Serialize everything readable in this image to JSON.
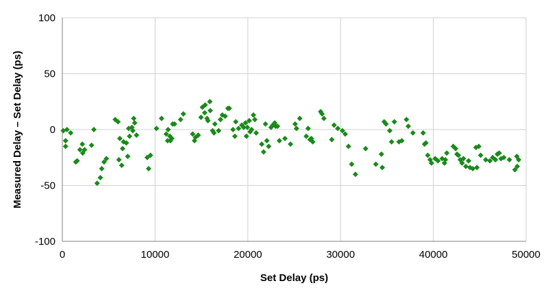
{
  "chart_data": {
    "type": "scatter",
    "title": "",
    "xlabel": "Set Delay (ps)",
    "ylabel": "Measured Delay – Set Delay (ps)",
    "xlim": [
      0,
      50000
    ],
    "ylim": [
      -100,
      100
    ],
    "x_ticks": [
      "0",
      "10000",
      "20000",
      "30000",
      "40000",
      "50000"
    ],
    "y_ticks": [
      "100",
      "50",
      "0",
      "-50",
      "-100"
    ],
    "grid": true,
    "legend": "none",
    "marker": "diamond",
    "colors": {
      "marker": "#1a8a1a",
      "grid": "#d0d0d0",
      "axis": "#808080"
    },
    "series": [
      {
        "points": [
          [
            100,
            -1
          ],
          [
            350,
            -10
          ],
          [
            350,
            -15
          ],
          [
            500,
            0
          ],
          [
            900,
            -3
          ],
          [
            1450,
            -29
          ],
          [
            1600,
            -28
          ],
          [
            1900,
            -18
          ],
          [
            2150,
            -13
          ],
          [
            2200,
            -21
          ],
          [
            2400,
            -18
          ],
          [
            3150,
            -14
          ],
          [
            3400,
            0
          ],
          [
            3750,
            -48
          ],
          [
            4100,
            -43
          ],
          [
            4250,
            -35
          ],
          [
            4500,
            -29
          ],
          [
            4750,
            -26
          ],
          [
            5700,
            9
          ],
          [
            6000,
            7
          ],
          [
            6100,
            -27
          ],
          [
            6200,
            -8
          ],
          [
            6400,
            -32
          ],
          [
            6500,
            -17
          ],
          [
            6600,
            -11
          ],
          [
            6900,
            -12
          ],
          [
            7050,
            -24
          ],
          [
            7150,
            1
          ],
          [
            7250,
            -6
          ],
          [
            7500,
            2
          ],
          [
            7600,
            -1
          ],
          [
            7700,
            10
          ],
          [
            7800,
            6
          ],
          [
            8000,
            -5
          ],
          [
            9150,
            -25
          ],
          [
            9300,
            -35
          ],
          [
            9500,
            -23
          ],
          [
            10150,
            1
          ],
          [
            10700,
            10
          ],
          [
            11200,
            -4
          ],
          [
            11350,
            -10
          ],
          [
            11400,
            0
          ],
          [
            11600,
            -6
          ],
          [
            11650,
            -10
          ],
          [
            11800,
            -8
          ],
          [
            11900,
            5
          ],
          [
            12100,
            5
          ],
          [
            12750,
            9
          ],
          [
            13050,
            14
          ],
          [
            14050,
            -4
          ],
          [
            14250,
            -10
          ],
          [
            14350,
            -7
          ],
          [
            14650,
            -5
          ],
          [
            14950,
            11
          ],
          [
            15100,
            20
          ],
          [
            15350,
            15
          ],
          [
            15400,
            22
          ],
          [
            15600,
            10
          ],
          [
            15700,
            8
          ],
          [
            15900,
            25
          ],
          [
            15950,
            17
          ],
          [
            16200,
            -1
          ],
          [
            16350,
            -3
          ],
          [
            16450,
            5
          ],
          [
            16850,
            -1
          ],
          [
            17050,
            9
          ],
          [
            17250,
            13
          ],
          [
            17550,
            12
          ],
          [
            17850,
            19
          ],
          [
            18000,
            19
          ],
          [
            18400,
            0
          ],
          [
            18600,
            -6
          ],
          [
            18700,
            7
          ],
          [
            19000,
            1
          ],
          [
            19350,
            4
          ],
          [
            19550,
            2
          ],
          [
            19750,
            6
          ],
          [
            19850,
            -6
          ],
          [
            19950,
            2
          ],
          [
            20150,
            8
          ],
          [
            20250,
            -2
          ],
          [
            20400,
            0
          ],
          [
            20600,
            13
          ],
          [
            20750,
            9
          ],
          [
            20900,
            -3
          ],
          [
            21500,
            -13
          ],
          [
            21700,
            -20
          ],
          [
            21900,
            5
          ],
          [
            22050,
            -10
          ],
          [
            22250,
            -15
          ],
          [
            22500,
            2
          ],
          [
            22700,
            4
          ],
          [
            22900,
            6
          ],
          [
            23000,
            3
          ],
          [
            23200,
            3
          ],
          [
            23400,
            -10
          ],
          [
            24000,
            -8
          ],
          [
            24600,
            -13
          ],
          [
            25100,
            5
          ],
          [
            25250,
            1
          ],
          [
            25600,
            10
          ],
          [
            26300,
            -6
          ],
          [
            26500,
            1
          ],
          [
            26700,
            -9
          ],
          [
            26850,
            -8
          ],
          [
            27000,
            -11
          ],
          [
            27850,
            16
          ],
          [
            28000,
            14
          ],
          [
            28200,
            10
          ],
          [
            29050,
            -9
          ],
          [
            29300,
            4
          ],
          [
            29700,
            1
          ],
          [
            30200,
            -1
          ],
          [
            30500,
            -4
          ],
          [
            30850,
            -15
          ],
          [
            31200,
            -31
          ],
          [
            31600,
            -40
          ],
          [
            32700,
            -17
          ],
          [
            33800,
            -31
          ],
          [
            34400,
            -22
          ],
          [
            34500,
            -34
          ],
          [
            34700,
            7
          ],
          [
            34900,
            5
          ],
          [
            35300,
            -1
          ],
          [
            35500,
            -11
          ],
          [
            35800,
            7
          ],
          [
            36300,
            -11
          ],
          [
            36600,
            -10
          ],
          [
            37100,
            9
          ],
          [
            37300,
            3
          ],
          [
            37800,
            -3
          ],
          [
            38900,
            -3
          ],
          [
            39050,
            -13
          ],
          [
            39200,
            -12
          ],
          [
            39400,
            -23
          ],
          [
            39650,
            -27
          ],
          [
            39800,
            -30
          ],
          [
            40200,
            -26
          ],
          [
            40500,
            -28
          ],
          [
            40950,
            -26
          ],
          [
            41200,
            -30
          ],
          [
            41300,
            -27
          ],
          [
            41450,
            -21
          ],
          [
            42150,
            -15
          ],
          [
            42400,
            -17
          ],
          [
            42550,
            -22
          ],
          [
            42700,
            -23
          ],
          [
            42900,
            -27
          ],
          [
            43100,
            -30
          ],
          [
            43250,
            -26
          ],
          [
            43500,
            -33
          ],
          [
            43800,
            -28
          ],
          [
            43950,
            -34
          ],
          [
            44250,
            -35
          ],
          [
            44600,
            -16
          ],
          [
            44700,
            -34
          ],
          [
            44900,
            -15
          ],
          [
            45100,
            -23
          ],
          [
            45650,
            -27
          ],
          [
            46100,
            -28
          ],
          [
            46400,
            -25
          ],
          [
            46700,
            -27
          ],
          [
            46900,
            -22
          ],
          [
            47100,
            -21
          ],
          [
            47300,
            -26
          ],
          [
            47600,
            -25
          ],
          [
            48200,
            -27
          ],
          [
            48800,
            -36
          ],
          [
            49000,
            -24
          ],
          [
            49050,
            -33
          ],
          [
            49200,
            -27
          ]
        ]
      }
    ]
  }
}
